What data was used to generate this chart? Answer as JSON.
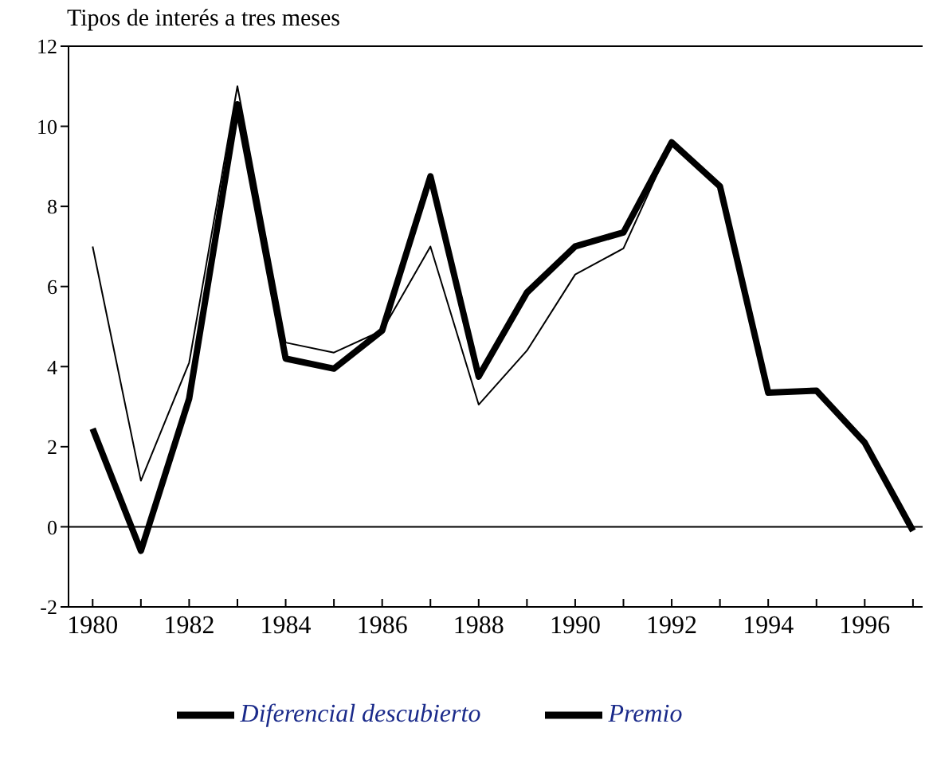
{
  "chart_data": {
    "type": "line",
    "title": "Tipos de interés a tres meses",
    "x": [
      1980,
      1981,
      1982,
      1983,
      1984,
      1985,
      1986,
      1987,
      1988,
      1989,
      1990,
      1991,
      1992,
      1993,
      1994,
      1995,
      1996,
      1997
    ],
    "series": [
      {
        "name": "Diferencial descubierto",
        "color": "#000000",
        "values": [
          2.45,
          -0.6,
          3.2,
          10.55,
          4.2,
          3.95,
          4.9,
          8.75,
          3.75,
          5.85,
          7.0,
          7.35,
          9.6,
          8.5,
          3.35,
          3.4,
          2.1,
          -0.1
        ]
      },
      {
        "name": "Premio",
        "color": "#000000",
        "values": [
          7.0,
          1.15,
          4.1,
          11.0,
          4.6,
          4.35,
          4.9,
          7.0,
          3.05,
          4.4,
          6.3,
          6.95,
          9.6,
          null,
          null,
          null,
          null,
          null
        ]
      }
    ],
    "xlim": [
      1979.5,
      1997.2
    ],
    "xticks": [
      1980,
      {
        "value": 1981,
        "label": null
      },
      1982,
      {
        "value": 1983,
        "label": null
      },
      1984,
      {
        "value": 1985,
        "label": null
      },
      1986,
      {
        "value": 1987,
        "label": null
      },
      1988,
      {
        "value": 1989,
        "label": null
      },
      1990,
      {
        "value": 1991,
        "label": null
      },
      1992,
      {
        "value": 1993,
        "label": null
      },
      1994,
      {
        "value": 1995,
        "label": null
      },
      1996,
      {
        "value": 1997,
        "label": null
      }
    ],
    "ylim": [
      -2,
      12
    ],
    "yticks": [
      -2,
      0,
      2,
      4,
      6,
      8,
      10,
      12
    ],
    "ref_lines": [
      {
        "axis": "y",
        "value": 0,
        "color": "#000000"
      }
    ],
    "grid": false,
    "legend": "bottom",
    "marker": "none",
    "line_style": "solid"
  }
}
